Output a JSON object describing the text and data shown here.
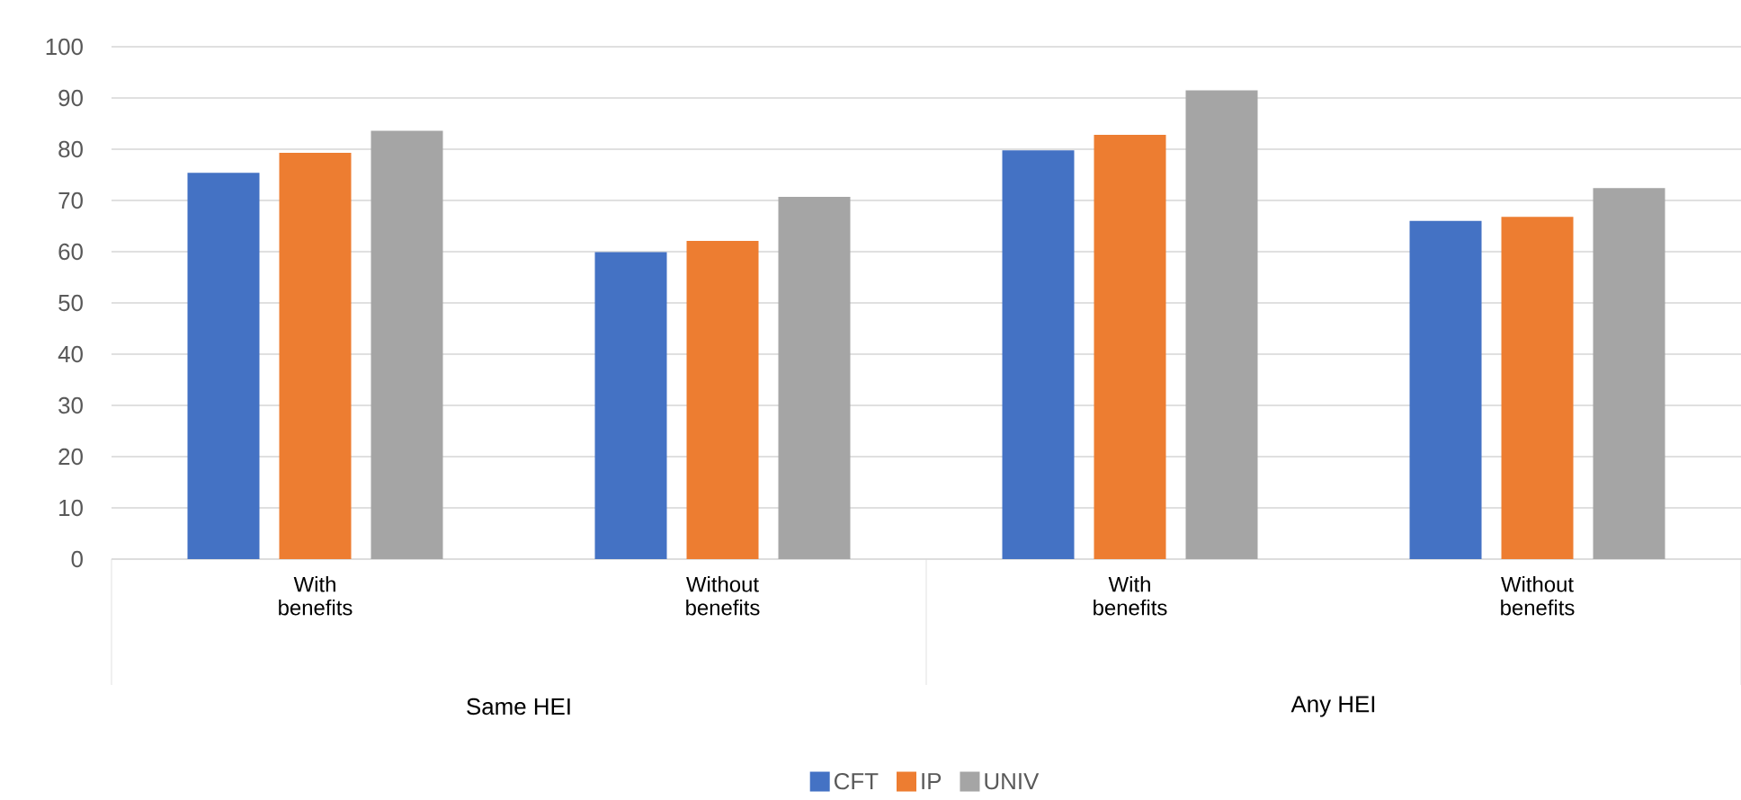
{
  "chart_data": {
    "type": "bar",
    "categories": [
      "With benefits",
      "Without benefits",
      "With benefits",
      "Without benefits"
    ],
    "series": [
      {
        "name": "CFT",
        "color": "#4472c4",
        "values": [
          75.4,
          59.9,
          79.8,
          66.0
        ]
      },
      {
        "name": "IP",
        "color": "#ed7d31",
        "values": [
          79.3,
          62.1,
          82.8,
          66.8
        ]
      },
      {
        "name": "UNIV",
        "color": "#a5a5a5",
        "values": [
          83.6,
          70.7,
          91.5,
          72.4
        ]
      }
    ],
    "annotations": [
      "Same HEI",
      "Any HEI"
    ],
    "ylim": [
      0,
      100
    ],
    "yticks": [
      0,
      10,
      20,
      30,
      40,
      50,
      60,
      70,
      80,
      90,
      100
    ],
    "grid": "y",
    "legend": "bottom"
  }
}
